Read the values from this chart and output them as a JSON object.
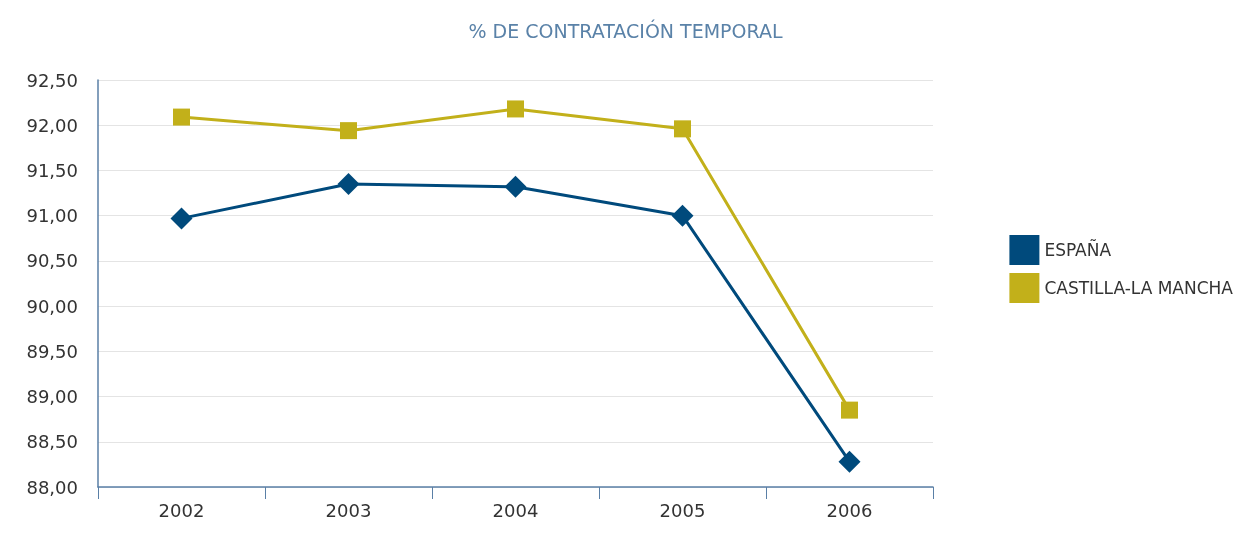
{
  "chart_data": {
    "type": "line",
    "title": "% DE CONTRATACIÓN TEMPORAL",
    "categories": [
      "2002",
      "2003",
      "2004",
      "2005",
      "2006"
    ],
    "series": [
      {
        "name": "ESPAÑA",
        "color": "#004a7c",
        "marker": "diamond",
        "values": [
          90.97,
          91.35,
          91.32,
          91.0,
          88.28
        ]
      },
      {
        "name": "CASTILLA-LA MANCHA",
        "color": "#c2b01a",
        "marker": "square",
        "values": [
          92.09,
          91.94,
          92.18,
          91.96,
          88.85
        ]
      }
    ],
    "ylim": [
      88,
      92.5
    ],
    "yticks": [
      {
        "value": 88,
        "label": "88,00"
      },
      {
        "value": 88.5,
        "label": "88,50"
      },
      {
        "value": 89,
        "label": "89,00"
      },
      {
        "value": 89.5,
        "label": "89,50"
      },
      {
        "value": 90,
        "label": "90,00"
      },
      {
        "value": 90.5,
        "label": "90,50"
      },
      {
        "value": 91,
        "label": "91,00"
      },
      {
        "value": 91.5,
        "label": "91,50"
      },
      {
        "value": 92,
        "label": "92,00"
      },
      {
        "value": 92.5,
        "label": "92,50"
      }
    ],
    "grid": "y",
    "legend": "right",
    "line_style": "solid"
  }
}
